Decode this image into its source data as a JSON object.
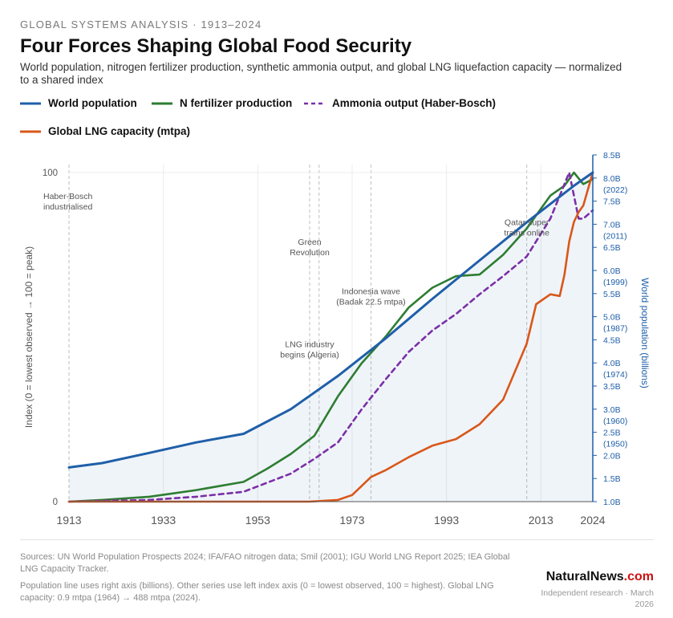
{
  "header": {
    "kicker": "GLOBAL SYSTEMS ANALYSIS · 1913–2024",
    "title": "Four Forces Shaping Global Food Security",
    "subtitle": "World population, nitrogen fertilizer production, synthetic ammonia output, and global LNG liquefaction capacity — normalized to a shared index"
  },
  "legend": [
    {
      "label": "World population",
      "color": "#1f5fa8",
      "style": "solid"
    },
    {
      "label": "N fertilizer production",
      "color": "#2e7d32",
      "style": "solid"
    },
    {
      "label": "Ammonia output (Haber-Bosch)",
      "color": "#7b2fa6",
      "style": "dashed"
    },
    {
      "label": "Global LNG capacity (mtpa)",
      "color": "#d9571a",
      "style": "solid"
    }
  ],
  "chart_data": {
    "type": "line",
    "xlim": [
      1913,
      2024
    ],
    "x_ticks": [
      1913,
      1933,
      1953,
      1973,
      1993,
      2013,
      2024
    ],
    "ylabel": "Index (0 = lowest observed → 100 = peak)",
    "y_ticks": [
      0,
      100
    ],
    "ylim": [
      0,
      100
    ],
    "y2label": "World population (billions)",
    "y2lim": [
      1.0,
      8.5
    ],
    "y2_ticks": [
      {
        "v": 1.0,
        "label": "1.0B"
      },
      {
        "v": 1.5,
        "label": "1.5B"
      },
      {
        "v": 2.0,
        "label": "2.0B"
      },
      {
        "v": 2.5,
        "label": "2.5B",
        "sub": "(1950)"
      },
      {
        "v": 3.0,
        "label": "3.0B",
        "sub": "(1960)"
      },
      {
        "v": 3.5,
        "label": "3.5B"
      },
      {
        "v": 4.0,
        "label": "4.0B",
        "sub": "(1974)"
      },
      {
        "v": 4.5,
        "label": "4.5B"
      },
      {
        "v": 5.0,
        "label": "5.0B",
        "sub": "(1987)"
      },
      {
        "v": 5.5,
        "label": "5.5B"
      },
      {
        "v": 6.0,
        "label": "6.0B",
        "sub": "(1999)"
      },
      {
        "v": 6.5,
        "label": "6.5B"
      },
      {
        "v": 7.0,
        "label": "7.0B",
        "sub": "(2011)"
      },
      {
        "v": 7.5,
        "label": "7.5B"
      },
      {
        "v": 8.0,
        "label": "8.0B",
        "sub": "(2022)"
      },
      {
        "v": 8.5,
        "label": "8.5B"
      }
    ],
    "series": [
      {
        "name": "World population",
        "color": "#1f5fa8",
        "axis": "index",
        "x": [
          1913,
          1920,
          1930,
          1940,
          1950,
          1960,
          1970,
          1980,
          1990,
          2000,
          2010,
          2020,
          2024
        ],
        "values": [
          10.4,
          11.7,
          14.8,
          18.0,
          20.6,
          28.1,
          38.2,
          49.5,
          61.6,
          73.3,
          84.9,
          96.0,
          100
        ]
      },
      {
        "name": "N fertilizer production",
        "color": "#2e7d32",
        "axis": "index",
        "x": [
          1913,
          1920,
          1930,
          1935,
          1940,
          1950,
          1955,
          1960,
          1965,
          1970,
          1975,
          1980,
          1985,
          1990,
          1995,
          2000,
          2005,
          2010,
          2015,
          2018,
          2020,
          2022,
          2024
        ],
        "values": [
          0,
          0.5,
          1.5,
          2.5,
          3.5,
          6,
          10,
          14.5,
          20,
          32,
          42,
          50,
          59,
          65,
          68.5,
          69,
          75,
          83,
          93,
          96,
          100,
          96.5,
          98
        ]
      },
      {
        "name": "Ammonia output (Haber-Bosch)",
        "color": "#7b2fa6",
        "axis": "index",
        "dash": true,
        "x": [
          1913,
          1930,
          1940,
          1950,
          1960,
          1965,
          1970,
          1975,
          1980,
          1985,
          1990,
          1995,
          2000,
          2005,
          2010,
          2015,
          2019,
          2020,
          2021,
          2022,
          2024
        ],
        "values": [
          0,
          0.5,
          1.5,
          3,
          8.5,
          13,
          18,
          28,
          37,
          45.5,
          52,
          57,
          63,
          68.5,
          74.5,
          86,
          100,
          93,
          86,
          86,
          88.5
        ]
      },
      {
        "name": "Global LNG capacity (mtpa)",
        "color": "#d9571a",
        "axis": "index",
        "x": [
          1913,
          1964,
          1970,
          1973,
          1977,
          1980,
          1985,
          1990,
          1995,
          2000,
          2005,
          2010,
          2012,
          2015,
          2017,
          2018,
          2019,
          2020,
          2021,
          2022,
          2024
        ],
        "values": [
          0,
          0,
          0.5,
          2,
          7.5,
          9.5,
          13.5,
          17,
          19,
          23.5,
          31,
          48,
          60,
          63,
          62.5,
          69,
          79,
          85,
          88,
          90,
          100
        ]
      }
    ],
    "annotations": [
      {
        "x": 1913,
        "lines": [
          "Haber-Bosch",
          "industrialised"
        ],
        "align": "left",
        "y": 92
      },
      {
        "x": 1964,
        "lines": [
          "Green",
          "Revolution"
        ],
        "align": "center",
        "y": 78
      },
      {
        "x": 1964,
        "lines": [
          "LNG industry",
          "begins (Algeria)"
        ],
        "align": "center",
        "y": 47
      },
      {
        "x": 1977,
        "lines": [
          "Indonesia wave",
          "(Badak 22.5 mtpa)"
        ],
        "align": "center",
        "y": 63
      },
      {
        "x": 2010,
        "lines": [
          "Qatar super",
          "trains online"
        ],
        "align": "center",
        "y": 84
      }
    ],
    "event_lines": [
      1913,
      1964,
      1966,
      1977,
      2010
    ]
  },
  "footer": {
    "sources": "Sources: UN World Population Prospects 2024; IFA/FAO nitrogen data; Smil (2001); IGU World LNG Report 2025; IEA Global LNG Capacity Tracker.",
    "note": "Population line uses right axis (billions). Other series use left index axis (0 = lowest observed, 100 = highest). Global LNG capacity: 0.9 mtpa (1964) → 488 mtpa (2024).",
    "brand_main": "NaturalNews",
    "brand_suffix": ".com",
    "tagline": "Independent research · March 2026"
  }
}
